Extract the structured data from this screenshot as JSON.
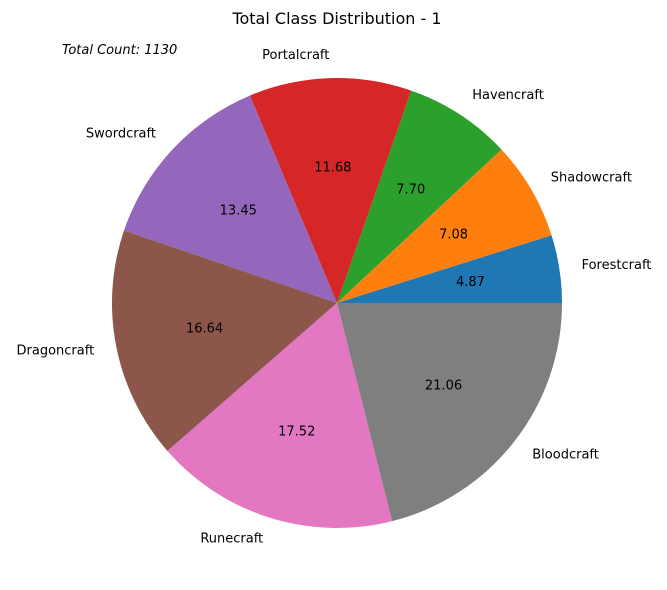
{
  "chart_data": {
    "type": "pie",
    "title": "Total Class Distribution - 1",
    "annotation": "Total Count: 1130",
    "slices": [
      {
        "label": "Forestcraft",
        "value": 4.87,
        "display": "4.87",
        "color": "#1f77b4"
      },
      {
        "label": "Shadowcraft",
        "value": 7.08,
        "display": "7.08",
        "color": "#ff7f0e"
      },
      {
        "label": "Havencraft",
        "value": 7.7,
        "display": "7.70",
        "color": "#2ca02c"
      },
      {
        "label": "Portalcraft",
        "value": 11.68,
        "display": "11.68",
        "color": "#d62728"
      },
      {
        "label": "Swordcraft",
        "value": 13.45,
        "display": "13.45",
        "color": "#9467bd"
      },
      {
        "label": "Dragoncraft",
        "value": 16.64,
        "display": "16.64",
        "color": "#8c564b"
      },
      {
        "label": "Runecraft",
        "value": 17.52,
        "display": "17.52",
        "color": "#e377c2"
      },
      {
        "label": "Bloodcraft",
        "value": 21.06,
        "display": "21.06",
        "color": "#7f7f7f"
      }
    ],
    "start_angle": 0,
    "direction": "counterclockwise"
  }
}
